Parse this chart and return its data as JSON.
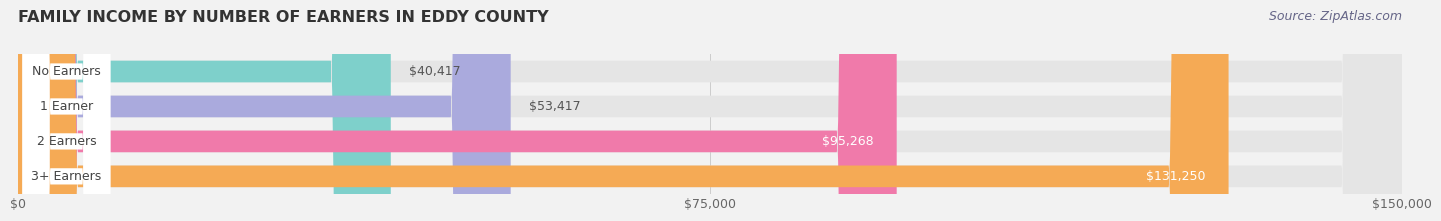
{
  "title": "FAMILY INCOME BY NUMBER OF EARNERS IN EDDY COUNTY",
  "source": "Source: ZipAtlas.com",
  "categories": [
    "No Earners",
    "1 Earner",
    "2 Earners",
    "3+ Earners"
  ],
  "values": [
    40417,
    53417,
    95268,
    131250
  ],
  "bar_colors": [
    "#7ED0CB",
    "#AAAADD",
    "#F07AAA",
    "#F5AA55"
  ],
  "value_inside": [
    false,
    false,
    true,
    true
  ],
  "xlim": [
    0,
    150000
  ],
  "xticks": [
    0,
    75000,
    150000
  ],
  "xticklabels": [
    "$0",
    "$75,000",
    "$150,000"
  ],
  "background_color": "#f2f2f2",
  "bar_background": "#e5e5e5",
  "bar_height": 0.62,
  "title_fontsize": 11.5,
  "source_fontsize": 9,
  "label_fontsize": 9,
  "tick_fontsize": 9,
  "cat_label_color": "#444444",
  "cat_label_bg": "#ffffff",
  "value_color_outside": "#555555",
  "value_color_inside": "#ffffff"
}
